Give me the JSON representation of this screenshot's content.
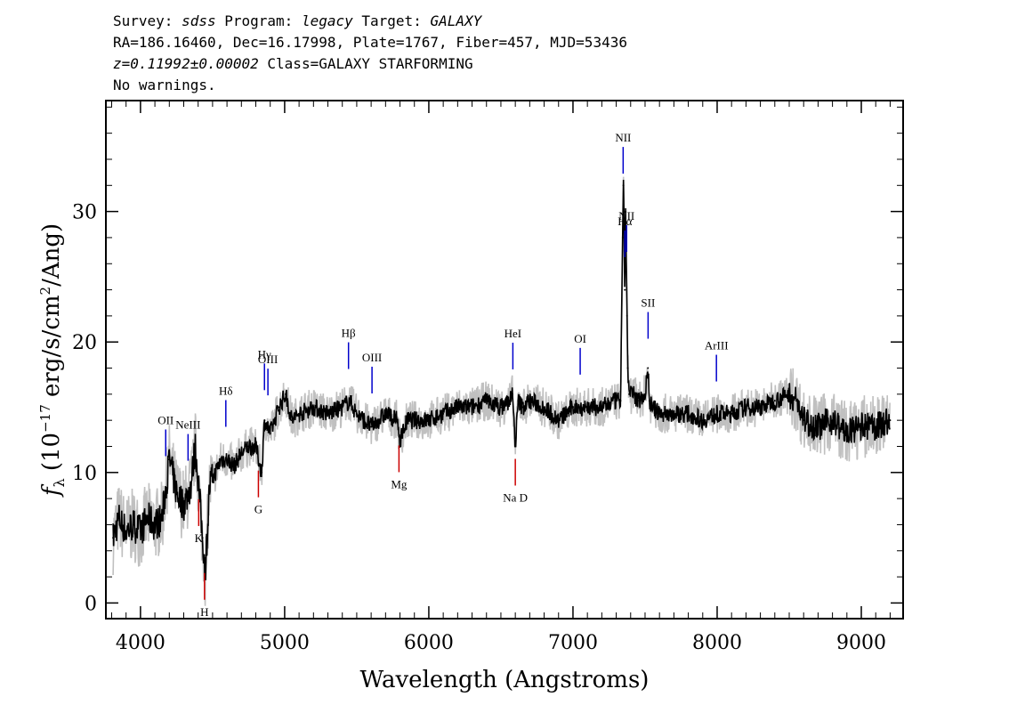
{
  "header": {
    "survey_label": "Survey:",
    "survey": "sdss",
    "program_label": "Program:",
    "program": "legacy",
    "target_label": "Target:",
    "target": "GALAXY",
    "line2": "RA=186.16460, Dec=16.17998, Plate=1767, Fiber=457, MJD=53436",
    "z": "z=0.11992±0.00002",
    "class": "Class=GALAXY STARFORMING",
    "warnings": "No warnings."
  },
  "chart_data": {
    "type": "line",
    "title": "",
    "xlabel": "Wavelength (Angstroms)",
    "ylabel": "fλ (10^-17 erg/s/cm²/Ang)",
    "ylabel_parts": {
      "f": "f",
      "sub": "λ",
      "a": " (10",
      "exp": "−17",
      "b": " erg/s/cm",
      "exp2": "2",
      "c": "/Ang)"
    },
    "xlim": [
      3760,
      9290
    ],
    "ylim": [
      -1.2,
      38.5
    ],
    "x_ticks": [
      4000,
      5000,
      6000,
      7000,
      8000,
      9000
    ],
    "x_tick_labels": [
      "4000",
      "5000",
      "6000",
      "7000",
      "8000",
      "9000"
    ],
    "y_ticks": [
      0,
      10,
      20,
      30
    ],
    "y_tick_labels": [
      "0",
      "10",
      "20",
      "30"
    ],
    "grid": false,
    "legend": "none",
    "colors": {
      "spectrum": "#000000",
      "noise": "#c0c0c0",
      "emission": "#0000cc",
      "absorption": "#cc0000"
    },
    "series": [
      {
        "name": "",
        "x": [
          3810,
          3850,
          3900,
          3950,
          4000,
          4050,
          4100,
          4150,
          4200,
          4250,
          4300,
          4350,
          4380,
          4400,
          4430,
          4450,
          4480,
          4520,
          4560,
          4600,
          4650,
          4700,
          4750,
          4800,
          4840,
          4861,
          4900,
          4960,
          5007,
          5050,
          5100,
          5200,
          5300,
          5400,
          5450,
          5500,
          5600,
          5700,
          5780,
          5800,
          5850,
          5900,
          6000,
          6100,
          6200,
          6300,
          6400,
          6500,
          6560,
          6580,
          6600,
          6620,
          6650,
          6700,
          6800,
          6900,
          7000,
          7100,
          7200,
          7300,
          7330,
          7345,
          7350,
          7360,
          7365,
          7375,
          7380,
          7390,
          7420,
          7450,
          7500,
          7520,
          7530,
          7550,
          7600,
          7700,
          7800,
          7900,
          8000,
          8100,
          8200,
          8300,
          8400,
          8500,
          8550,
          8600,
          8700,
          8800,
          8900,
          9000,
          9100,
          9200
        ],
        "y": [
          5,
          6.5,
          5.5,
          6,
          5.5,
          6.5,
          6,
          6.5,
          11,
          8.5,
          7.5,
          9,
          12,
          9.5,
          5,
          2.5,
          9,
          10,
          11,
          11,
          10.5,
          11.5,
          12,
          12,
          10,
          14,
          13,
          15,
          16,
          14,
          14.5,
          15,
          14.5,
          15,
          15.5,
          14.5,
          13.5,
          14.5,
          14,
          12.5,
          14,
          14,
          14,
          14.5,
          15,
          15,
          15.5,
          15,
          15.5,
          16,
          12,
          15.5,
          15,
          15.5,
          15,
          14,
          15,
          15,
          15,
          15.5,
          15.5,
          28,
          32,
          24,
          30,
          22,
          18,
          16,
          16,
          15.5,
          16,
          18,
          15.5,
          15,
          14.5,
          14.5,
          14.5,
          14,
          14.5,
          14.5,
          15,
          15,
          15.5,
          16,
          15.5,
          14,
          13.5,
          14,
          13,
          13.5,
          13.5,
          14
        ]
      }
    ],
    "emission_lines": [
      {
        "label": "OII",
        "x": 4175
      },
      {
        "label": "NeIII",
        "x": 4330
      },
      {
        "label": "Hδ",
        "x": 4592
      },
      {
        "label": "Hγ",
        "x": 4860
      },
      {
        "label": "OIII",
        "x": 4884
      },
      {
        "label": "Hβ",
        "x": 5443
      },
      {
        "label": "OIII",
        "x": 5606
      },
      {
        "label": "HeI",
        "x": 6583
      },
      {
        "label": "OI",
        "x": 7050
      },
      {
        "label": "NII",
        "x": 7348
      },
      {
        "label": "Hα",
        "x": 7360
      },
      {
        "label": "NII",
        "x": 7372
      },
      {
        "label": "SII",
        "x": 7521
      },
      {
        "label": "ArIII",
        "x": 7995
      }
    ],
    "absorption_lines": [
      {
        "label": "K",
        "x": 4404
      },
      {
        "label": "H",
        "x": 4444
      },
      {
        "label": "G",
        "x": 4818
      },
      {
        "label": "Mg",
        "x": 5793
      },
      {
        "label": "Na D",
        "x": 6600
      }
    ]
  }
}
